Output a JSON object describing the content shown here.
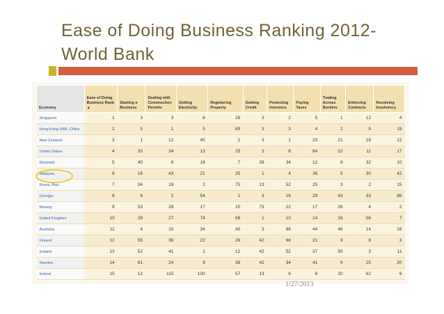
{
  "slide": {
    "title_line1": "Ease of Doing Business Ranking 2012-",
    "title_line2": "World Bank",
    "date": "1/27/2013",
    "table": {
      "headers": [
        "Economy",
        "Ease of Doing Business Rank ▲",
        "Starting a Business",
        "Dealing with Construction Permits",
        "Getting Electricity",
        "Registering Property",
        "Getting Credit",
        "Protecting Investors",
        "Paying Taxes",
        "Trading Across Borders",
        "Enforcing Contracts",
        "Resolving Insolvency"
      ],
      "rows": [
        [
          "Singapore",
          1,
          3,
          3,
          6,
          28,
          3,
          2,
          5,
          1,
          12,
          4
        ],
        [
          "Hong Kong SAR, China",
          2,
          5,
          1,
          5,
          89,
          3,
          3,
          4,
          2,
          9,
          19
        ],
        [
          "New Zealand",
          3,
          1,
          12,
          45,
          2,
          3,
          1,
          23,
          21,
          18,
          12
        ],
        [
          "United States",
          4,
          20,
          34,
          13,
          25,
          3,
          6,
          64,
          22,
          11,
          17
        ],
        [
          "Denmark",
          5,
          40,
          8,
          18,
          7,
          28,
          34,
          12,
          8,
          32,
          10
        ],
        [
          "Malaysia",
          6,
          16,
          43,
          21,
          35,
          1,
          4,
          36,
          5,
          30,
          42
        ],
        [
          "Korea, Rep.",
          7,
          34,
          18,
          2,
          75,
          13,
          52,
          25,
          3,
          2,
          15
        ],
        [
          "Georgia",
          8,
          8,
          2,
          54,
          1,
          3,
          16,
          29,
          43,
          33,
          88
        ],
        [
          "Norway",
          9,
          53,
          28,
          17,
          10,
          73,
          22,
          17,
          26,
          4,
          2
        ],
        [
          "United Kingdom",
          10,
          28,
          27,
          74,
          68,
          1,
          10,
          14,
          16,
          56,
          7
        ],
        [
          "Australia",
          11,
          4,
          10,
          34,
          40,
          3,
          68,
          44,
          46,
          14,
          18
        ],
        [
          "Finland",
          12,
          55,
          36,
          22,
          26,
          42,
          68,
          21,
          9,
          8,
          3
        ],
        [
          "Iceland",
          13,
          52,
          41,
          1,
          12,
          42,
          52,
          37,
          50,
          3,
          11
        ],
        [
          "Sweden",
          14,
          61,
          24,
          9,
          38,
          42,
          34,
          41,
          6,
          25,
          20
        ],
        [
          "Ireland",
          15,
          12,
          115,
          100,
          57,
          13,
          6,
          6,
          20,
          62,
          8
        ]
      ]
    }
  }
}
